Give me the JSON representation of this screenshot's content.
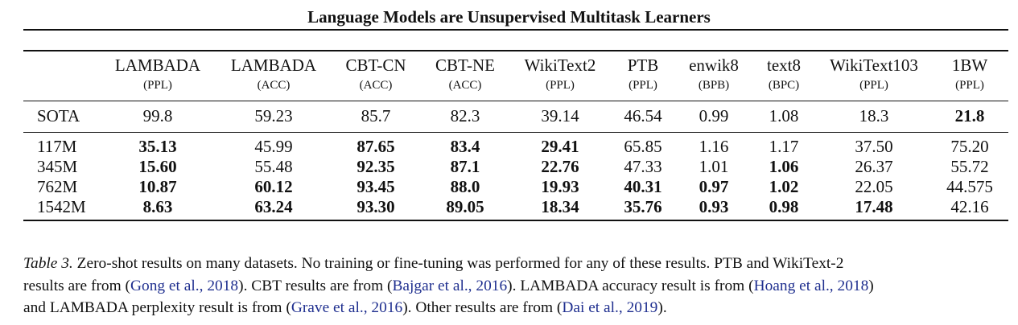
{
  "header": {
    "running_title": "Language Models are Unsupervised Multitask Learners"
  },
  "table": {
    "columns": [
      {
        "name": "LAMBADA",
        "unit": "(PPL)"
      },
      {
        "name": "LAMBADA",
        "unit": "(ACC)"
      },
      {
        "name": "CBT-CN",
        "unit": "(ACC)"
      },
      {
        "name": "CBT-NE",
        "unit": "(ACC)"
      },
      {
        "name": "WikiText2",
        "unit": "(PPL)"
      },
      {
        "name": "PTB",
        "unit": "(PPL)"
      },
      {
        "name": "enwik8",
        "unit": "(BPB)"
      },
      {
        "name": "text8",
        "unit": "(BPC)"
      },
      {
        "name": "WikiText103",
        "unit": "(PPL)"
      },
      {
        "name": "1BW",
        "unit": "(PPL)"
      }
    ],
    "rows": [
      {
        "label": "SOTA",
        "cells": [
          {
            "text": "99.8",
            "bold": false
          },
          {
            "text": "59.23",
            "bold": false
          },
          {
            "text": "85.7",
            "bold": false
          },
          {
            "text": "82.3",
            "bold": false
          },
          {
            "text": "39.14",
            "bold": false
          },
          {
            "text": "46.54",
            "bold": false
          },
          {
            "text": "0.99",
            "bold": false
          },
          {
            "text": "1.08",
            "bold": false
          },
          {
            "text": "18.3",
            "bold": false
          },
          {
            "text": "21.8",
            "bold": true
          }
        ]
      },
      {
        "label": "117M",
        "cells": [
          {
            "text": "35.13",
            "bold": true
          },
          {
            "text": "45.99",
            "bold": false
          },
          {
            "text": "87.65",
            "bold": true
          },
          {
            "text": "83.4",
            "bold": true
          },
          {
            "text": "29.41",
            "bold": true
          },
          {
            "text": "65.85",
            "bold": false
          },
          {
            "text": "1.16",
            "bold": false
          },
          {
            "text": "1.17",
            "bold": false
          },
          {
            "text": "37.50",
            "bold": false
          },
          {
            "text": "75.20",
            "bold": false
          }
        ]
      },
      {
        "label": "345M",
        "cells": [
          {
            "text": "15.60",
            "bold": true
          },
          {
            "text": "55.48",
            "bold": false
          },
          {
            "text": "92.35",
            "bold": true
          },
          {
            "text": "87.1",
            "bold": true
          },
          {
            "text": "22.76",
            "bold": true
          },
          {
            "text": "47.33",
            "bold": false
          },
          {
            "text": "1.01",
            "bold": false
          },
          {
            "text": "1.06",
            "bold": true
          },
          {
            "text": "26.37",
            "bold": false
          },
          {
            "text": "55.72",
            "bold": false
          }
        ]
      },
      {
        "label": "762M",
        "cells": [
          {
            "text": "10.87",
            "bold": true
          },
          {
            "text": "60.12",
            "bold": true
          },
          {
            "text": "93.45",
            "bold": true
          },
          {
            "text": "88.0",
            "bold": true
          },
          {
            "text": "19.93",
            "bold": true
          },
          {
            "text": "40.31",
            "bold": true
          },
          {
            "text": "0.97",
            "bold": true
          },
          {
            "text": "1.02",
            "bold": true
          },
          {
            "text": "22.05",
            "bold": false
          },
          {
            "text": "44.575",
            "bold": false
          }
        ]
      },
      {
        "label": "1542M",
        "cells": [
          {
            "text": "8.63",
            "bold": true
          },
          {
            "text": "63.24",
            "bold": true
          },
          {
            "text": "93.30",
            "bold": true
          },
          {
            "text": "89.05",
            "bold": true
          },
          {
            "text": "18.34",
            "bold": true
          },
          {
            "text": "35.76",
            "bold": true
          },
          {
            "text": "0.93",
            "bold": true
          },
          {
            "text": "0.98",
            "bold": true
          },
          {
            "text": "17.48",
            "bold": true
          },
          {
            "text": "42.16",
            "bold": false
          }
        ]
      }
    ]
  },
  "caption": {
    "label": "Table 3.",
    "line1_text": " Zero-shot results on many datasets. No training or fine-tuning was performed for any of these results. PTB and WikiText-2",
    "line2_pre": "results are from (",
    "cite_gong": "Gong et al., 2018",
    "line2_mid1": "). CBT results are from (",
    "cite_bajgar": "Bajgar et al., 2016",
    "line2_mid2": "). LAMBADA accuracy result is from (",
    "cite_hoang": "Hoang et al., 2018",
    "line2_post": ")",
    "line3_pre": "and LAMBADA perplexity result is from (",
    "cite_grave": "Grave et al., 2016",
    "line3_mid": "). Other results are from (",
    "cite_dai": "Dai et al., 2019",
    "line3_post": ")."
  }
}
